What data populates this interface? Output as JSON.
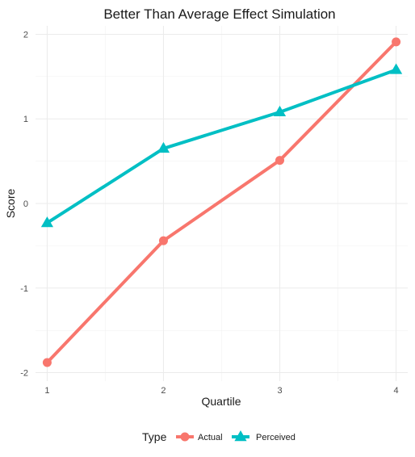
{
  "chart_data": {
    "type": "line",
    "title": "Better Than Average Effect Simulation",
    "xlabel": "Quartile",
    "ylabel": "Score",
    "x": [
      1,
      2,
      3,
      4
    ],
    "xlim": [
      0.9,
      4.1
    ],
    "ylim": [
      -2.1,
      2.1
    ],
    "x_ticks": [
      1,
      2,
      3,
      4
    ],
    "y_ticks": [
      -2,
      -1,
      0,
      1,
      2
    ],
    "grid": true,
    "legend": {
      "title": "Type",
      "position": "bottom"
    },
    "series": [
      {
        "name": "Actual",
        "marker": "circle",
        "color": "#F8766D",
        "values": [
          -1.88,
          -0.44,
          0.51,
          1.91
        ]
      },
      {
        "name": "Perceived",
        "marker": "triangle",
        "color": "#00BFC4",
        "values": [
          -0.23,
          0.65,
          1.08,
          1.58
        ]
      }
    ]
  }
}
